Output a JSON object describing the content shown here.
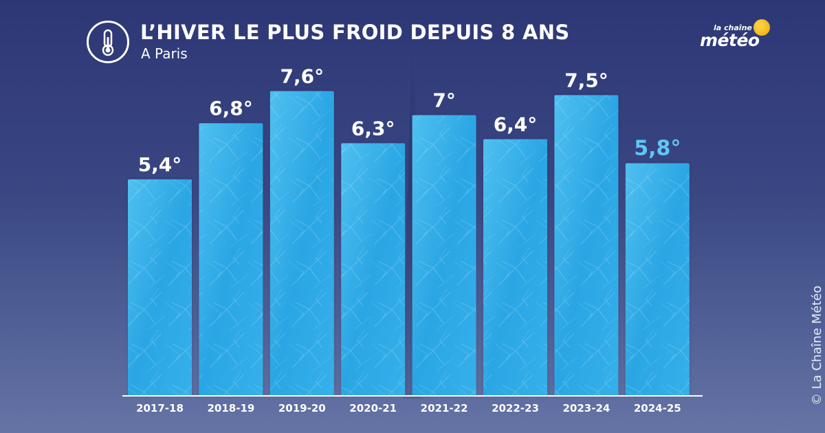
{
  "header": {
    "title": "L’HIVER LE PLUS FROID DEPUIS 8 ANS",
    "subtitle": "A Paris",
    "icon": "thermometer-icon"
  },
  "logo": {
    "top_text": "la chaîne",
    "main_text": "météo"
  },
  "copyright": "© La Chaîne Météo",
  "colors": {
    "bar": "#2aa6e4",
    "bar_light": "#5cc8f2",
    "value_label": "#ffffff",
    "highlight_label": "#5fc7f5",
    "axis": "#ffffff"
  },
  "chart_data": {
    "type": "bar",
    "title": "L’HIVER LE PLUS FROID DEPUIS 8 ANS",
    "subtitle": "A Paris",
    "categories": [
      "2017-18",
      "2018-19",
      "2019-20",
      "2020-21",
      "2021-22",
      "2022-23",
      "2023-24",
      "2024-25"
    ],
    "values": [
      5.4,
      6.8,
      7.6,
      6.3,
      7.0,
      6.4,
      7.5,
      5.8
    ],
    "value_labels": [
      "5,4°",
      "6,8°",
      "7,6°",
      "6,3°",
      "7°",
      "6,4°",
      "7,5°",
      "5,8°"
    ],
    "highlight_index": 7,
    "xlabel": "",
    "ylabel": "",
    "ylim": [
      0,
      8.5
    ],
    "grid": false,
    "legend": "none"
  }
}
